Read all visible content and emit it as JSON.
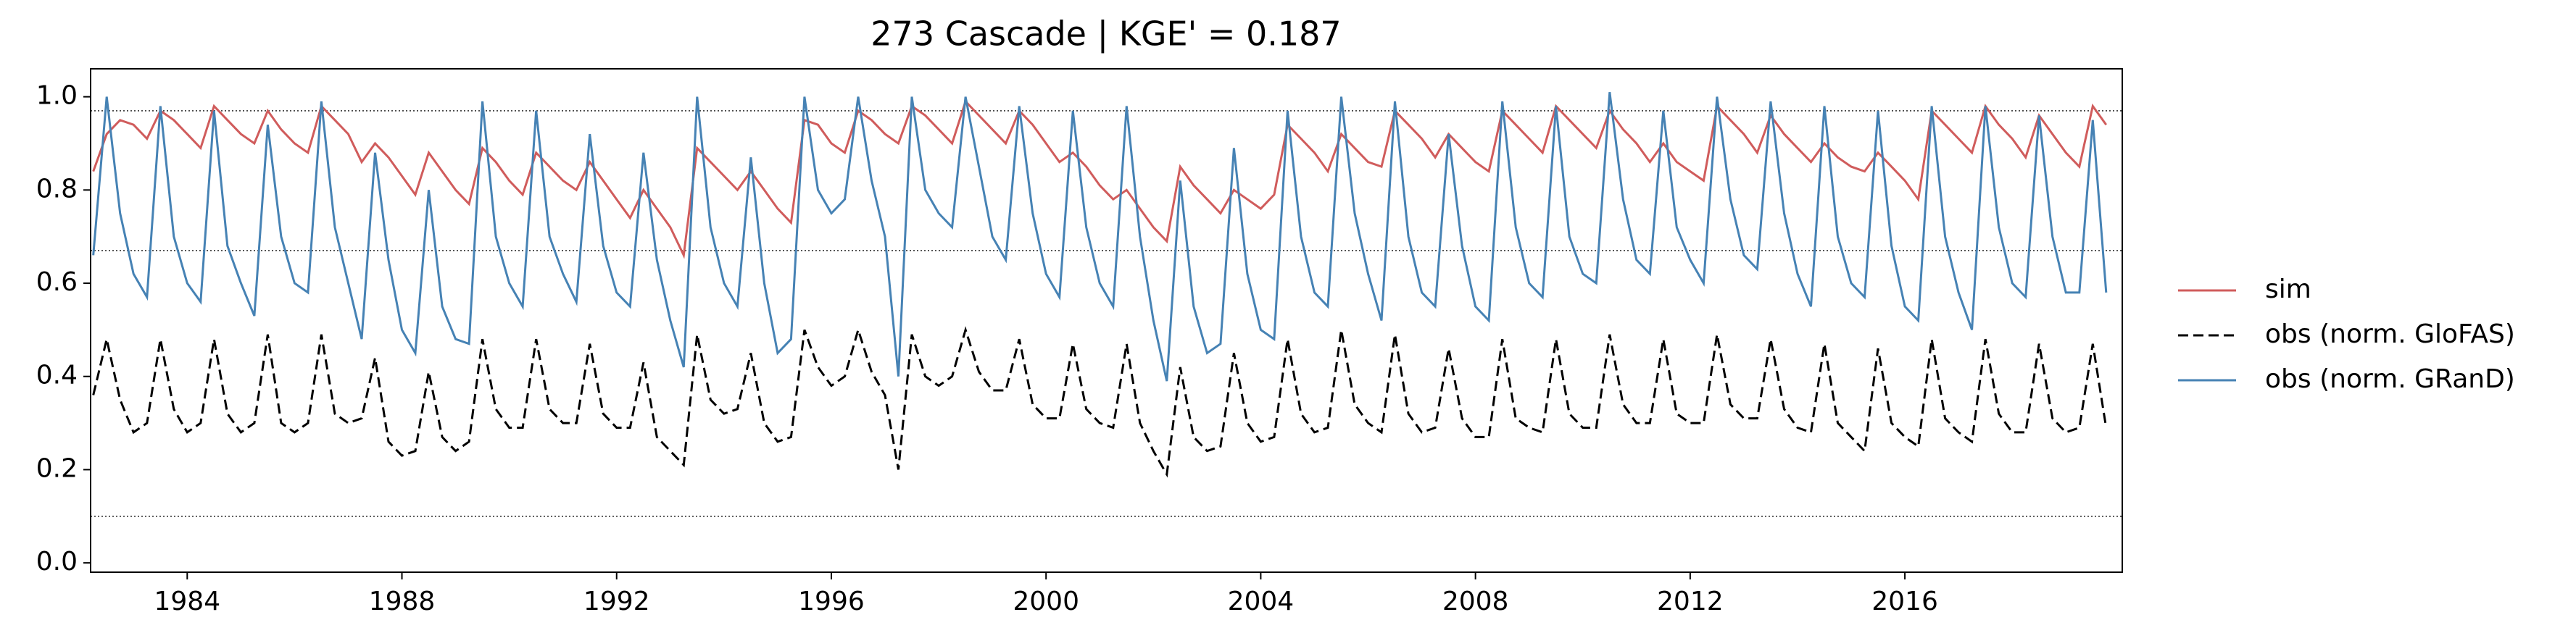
{
  "chart_data": {
    "type": "line",
    "title": "273  Cascade | KGE' = 0.187",
    "x": [
      1982.25,
      1982.5,
      1982.75,
      1983,
      1983.25,
      1983.5,
      1983.75,
      1984,
      1984.25,
      1984.5,
      1984.75,
      1985,
      1985.25,
      1985.5,
      1985.75,
      1986,
      1986.25,
      1986.5,
      1986.75,
      1987,
      1987.25,
      1987.5,
      1987.75,
      1988,
      1988.25,
      1988.5,
      1988.75,
      1989,
      1989.25,
      1989.5,
      1989.75,
      1990,
      1990.25,
      1990.5,
      1990.75,
      1991,
      1991.25,
      1991.5,
      1991.75,
      1992,
      1992.25,
      1992.5,
      1992.75,
      1993,
      1993.25,
      1993.5,
      1993.75,
      1994,
      1994.25,
      1994.5,
      1994.75,
      1995,
      1995.25,
      1995.5,
      1995.75,
      1996,
      1996.25,
      1996.5,
      1996.75,
      1997,
      1997.25,
      1997.5,
      1997.75,
      1998,
      1998.25,
      1998.5,
      1998.75,
      1999,
      1999.25,
      1999.5,
      1999.75,
      2000,
      2000.25,
      2000.5,
      2000.75,
      2001,
      2001.25,
      2001.5,
      2001.75,
      2002,
      2002.25,
      2002.5,
      2002.75,
      2003,
      2003.25,
      2003.5,
      2003.75,
      2004,
      2004.25,
      2004.5,
      2004.75,
      2005,
      2005.25,
      2005.5,
      2005.75,
      2006,
      2006.25,
      2006.5,
      2006.75,
      2007,
      2007.25,
      2007.5,
      2007.75,
      2008,
      2008.25,
      2008.5,
      2008.75,
      2009,
      2009.25,
      2009.5,
      2009.75,
      2010,
      2010.25,
      2010.5,
      2010.75,
      2011,
      2011.25,
      2011.5,
      2011.75,
      2012,
      2012.25,
      2012.5,
      2012.75,
      2013,
      2013.25,
      2013.5,
      2013.75,
      2014,
      2014.25,
      2014.5,
      2014.75,
      2015,
      2015.25,
      2015.5,
      2015.75,
      2016,
      2016.25,
      2016.5,
      2016.75,
      2017,
      2017.25,
      2017.5,
      2017.75,
      2018,
      2018.25,
      2018.5,
      2018.75,
      2019,
      2019.25,
      2019.5,
      2019.75
    ],
    "series": [
      {
        "name": "sim",
        "color": "#d05c5c",
        "linestyle": "solid",
        "values": [
          0.84,
          0.92,
          0.95,
          0.94,
          0.91,
          0.97,
          0.95,
          0.92,
          0.89,
          0.98,
          0.95,
          0.92,
          0.9,
          0.97,
          0.93,
          0.9,
          0.88,
          0.98,
          0.95,
          0.92,
          0.86,
          0.9,
          0.87,
          0.83,
          0.79,
          0.88,
          0.84,
          0.8,
          0.77,
          0.89,
          0.86,
          0.82,
          0.79,
          0.88,
          0.85,
          0.82,
          0.8,
          0.86,
          0.82,
          0.78,
          0.74,
          0.8,
          0.76,
          0.72,
          0.66,
          0.89,
          0.86,
          0.83,
          0.8,
          0.84,
          0.8,
          0.76,
          0.73,
          0.95,
          0.94,
          0.9,
          0.88,
          0.97,
          0.95,
          0.92,
          0.9,
          0.98,
          0.96,
          0.93,
          0.9,
          0.99,
          0.96,
          0.93,
          0.9,
          0.97,
          0.94,
          0.9,
          0.86,
          0.88,
          0.85,
          0.81,
          0.78,
          0.8,
          0.76,
          0.72,
          0.69,
          0.85,
          0.81,
          0.78,
          0.75,
          0.8,
          0.78,
          0.76,
          0.79,
          0.94,
          0.91,
          0.88,
          0.84,
          0.92,
          0.89,
          0.86,
          0.85,
          0.97,
          0.94,
          0.91,
          0.87,
          0.92,
          0.89,
          0.86,
          0.84,
          0.97,
          0.94,
          0.91,
          0.88,
          0.98,
          0.95,
          0.92,
          0.89,
          0.97,
          0.93,
          0.9,
          0.86,
          0.9,
          0.86,
          0.84,
          0.82,
          0.98,
          0.95,
          0.92,
          0.88,
          0.96,
          0.92,
          0.89,
          0.86,
          0.9,
          0.87,
          0.85,
          0.84,
          0.88,
          0.85,
          0.82,
          0.78,
          0.97,
          0.94,
          0.91,
          0.88,
          0.98,
          0.94,
          0.91,
          0.87,
          0.96,
          0.92,
          0.88,
          0.85,
          0.98,
          0.94
        ]
      },
      {
        "name": "obs (norm. GloFAS)",
        "color": "#000000",
        "linestyle": "dashed",
        "values": [
          0.36,
          0.48,
          0.35,
          0.28,
          0.3,
          0.48,
          0.33,
          0.28,
          0.3,
          0.48,
          0.32,
          0.28,
          0.3,
          0.49,
          0.3,
          0.28,
          0.3,
          0.49,
          0.32,
          0.3,
          0.31,
          0.44,
          0.26,
          0.23,
          0.24,
          0.41,
          0.27,
          0.24,
          0.26,
          0.48,
          0.33,
          0.29,
          0.29,
          0.48,
          0.33,
          0.3,
          0.3,
          0.47,
          0.32,
          0.29,
          0.29,
          0.43,
          0.27,
          0.24,
          0.21,
          0.49,
          0.35,
          0.32,
          0.33,
          0.45,
          0.3,
          0.26,
          0.27,
          0.5,
          0.42,
          0.38,
          0.4,
          0.5,
          0.41,
          0.36,
          0.2,
          0.49,
          0.4,
          0.38,
          0.4,
          0.5,
          0.41,
          0.37,
          0.37,
          0.48,
          0.34,
          0.31,
          0.31,
          0.47,
          0.33,
          0.3,
          0.29,
          0.47,
          0.3,
          0.24,
          0.19,
          0.42,
          0.27,
          0.24,
          0.25,
          0.45,
          0.3,
          0.26,
          0.27,
          0.48,
          0.32,
          0.28,
          0.29,
          0.5,
          0.34,
          0.3,
          0.28,
          0.49,
          0.32,
          0.28,
          0.29,
          0.46,
          0.31,
          0.27,
          0.27,
          0.48,
          0.31,
          0.29,
          0.28,
          0.48,
          0.32,
          0.29,
          0.29,
          0.49,
          0.34,
          0.3,
          0.3,
          0.48,
          0.32,
          0.3,
          0.3,
          0.49,
          0.34,
          0.31,
          0.31,
          0.48,
          0.33,
          0.29,
          0.28,
          0.47,
          0.3,
          0.27,
          0.24,
          0.46,
          0.3,
          0.27,
          0.25,
          0.48,
          0.31,
          0.28,
          0.26,
          0.48,
          0.32,
          0.28,
          0.28,
          0.47,
          0.31,
          0.28,
          0.29,
          0.47,
          0.29
        ]
      },
      {
        "name": "obs (norm. GRanD)",
        "color": "#4682b4",
        "linestyle": "solid",
        "values": [
          0.66,
          1.0,
          0.75,
          0.62,
          0.57,
          0.98,
          0.7,
          0.6,
          0.56,
          0.97,
          0.68,
          0.6,
          0.53,
          0.94,
          0.7,
          0.6,
          0.58,
          0.99,
          0.72,
          0.6,
          0.48,
          0.88,
          0.65,
          0.5,
          0.45,
          0.8,
          0.55,
          0.48,
          0.47,
          0.99,
          0.7,
          0.6,
          0.55,
          0.97,
          0.7,
          0.62,
          0.56,
          0.92,
          0.68,
          0.58,
          0.55,
          0.88,
          0.65,
          0.52,
          0.42,
          1.0,
          0.72,
          0.6,
          0.55,
          0.87,
          0.6,
          0.45,
          0.48,
          1.0,
          0.8,
          0.75,
          0.78,
          1.0,
          0.82,
          0.7,
          0.4,
          1.0,
          0.8,
          0.75,
          0.72,
          1.0,
          0.85,
          0.7,
          0.65,
          0.98,
          0.75,
          0.62,
          0.57,
          0.97,
          0.72,
          0.6,
          0.55,
          0.98,
          0.7,
          0.52,
          0.39,
          0.82,
          0.55,
          0.45,
          0.47,
          0.89,
          0.62,
          0.5,
          0.48,
          0.97,
          0.7,
          0.58,
          0.55,
          1.0,
          0.75,
          0.62,
          0.52,
          0.99,
          0.7,
          0.58,
          0.55,
          0.92,
          0.68,
          0.55,
          0.52,
          0.99,
          0.72,
          0.6,
          0.57,
          0.98,
          0.7,
          0.62,
          0.6,
          1.01,
          0.78,
          0.65,
          0.62,
          0.97,
          0.72,
          0.65,
          0.6,
          1.0,
          0.78,
          0.66,
          0.63,
          0.99,
          0.75,
          0.62,
          0.55,
          0.98,
          0.7,
          0.6,
          0.57,
          0.97,
          0.68,
          0.55,
          0.52,
          0.98,
          0.7,
          0.58,
          0.5,
          0.98,
          0.72,
          0.6,
          0.57,
          0.96,
          0.7,
          0.58,
          0.58,
          0.95,
          0.58
        ]
      }
    ],
    "reference_lines": [
      0.97,
      0.67,
      0.1
    ],
    "xlim": [
      1982.2,
      2020.05
    ],
    "xticks": [
      1984,
      1988,
      1992,
      1996,
      2000,
      2004,
      2008,
      2012,
      2016
    ],
    "ylim": [
      -0.02,
      1.06
    ],
    "yticks": [
      {
        "value": 0,
        "label": "0.0"
      },
      {
        "value": 0.2,
        "label": "0.2"
      },
      {
        "value": 0.4,
        "label": "0.4"
      },
      {
        "value": 0.6,
        "label": "0.6"
      },
      {
        "value": 0.8,
        "label": "0.8"
      },
      {
        "value": 1,
        "label": "1.0"
      }
    ],
    "legend": "outside-right"
  }
}
